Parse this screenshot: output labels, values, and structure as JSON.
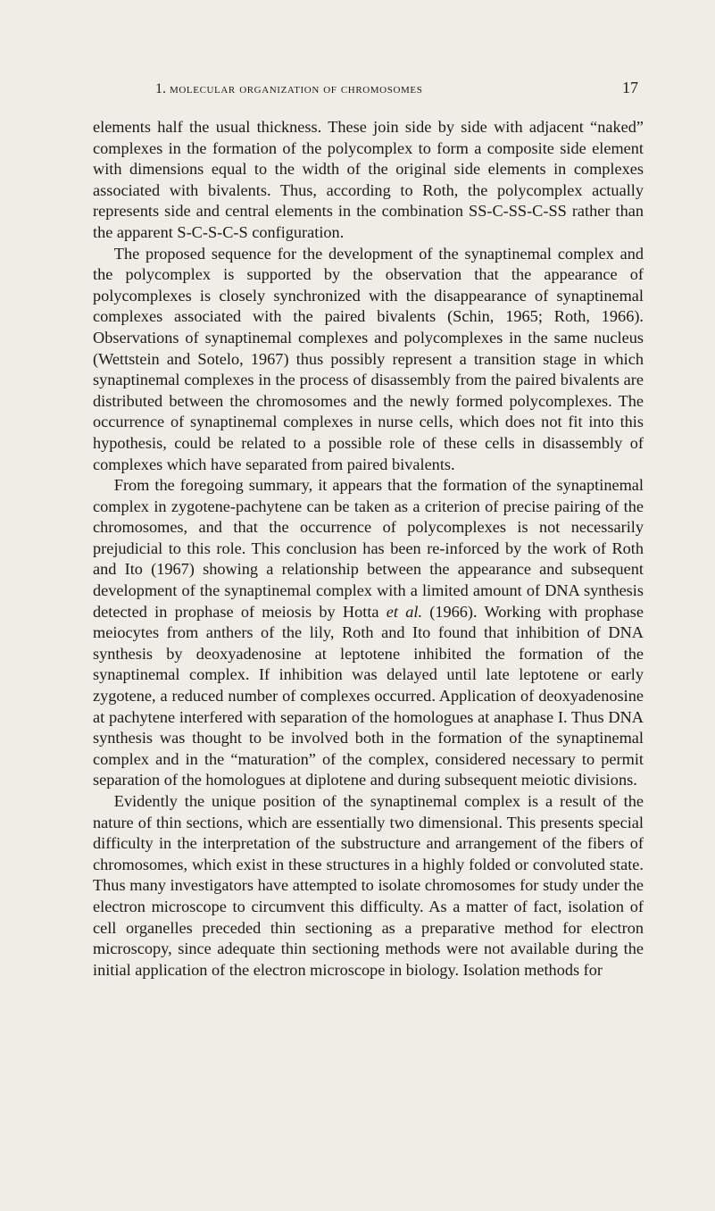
{
  "header": {
    "section_number": "1.",
    "section_title": "molecular organization of chromosomes",
    "page_number": "17"
  },
  "paragraphs": [
    {
      "indent": false,
      "text": "elements half the usual thickness. These join side by side with adjacent “naked” complexes in the formation of the polycomplex to form a com­posite side element with dimensions equal to the width of the original side elements in complexes associated with bivalents. Thus, according to Roth, the polycomplex actually represents side and central elements in the combination SS-C-SS-C-SS rather than the apparent S-C-S-C-S configuration."
    },
    {
      "indent": true,
      "text": "The proposed sequence for the development of the synaptinemal complex and the polycomplex is supported by the observation that the appearance of polycomplexes is closely synchronized with the disappearance of synaptinemal complexes associated with the paired bivalents (Schin, 1965; Roth, 1966). Observations of synaptinemal complexes and polycomplexes in the same nucleus (Wettstein and Sotelo, 1967) thus possibly represent a transition stage in which synaptinemal complexes in the process of dis­assembly from the paired bivalents are distributed between the chromosomes and the newly formed polycomplexes. The occurrence of synaptinemal complexes in nurse cells, which does not fit into this hypothesis, could be related to a possible role of these cells in disassembly of complexes which have separated from paired bivalents."
    },
    {
      "indent": true,
      "text_pre": "From the foregoing summary, it appears that the formation of the synaptinemal complex in zygotene-pachytene can be taken as a criterion of precise pairing of the chromosomes, and that the occurrence of poly­complexes is not necessarily prejudicial to this role. This conclusion has been re-inforced by the work of Roth and Ito (1967) showing a relationship between the appearance and subsequent development of the synaptinemal complex with a limited amount of DNA synthesis detected in prophase of meiosis by Hotta ",
      "ital": "et al.",
      "text_post": " (1966). Working with prophase meiocytes from anthers of the lily, Roth and Ito found that inhibition of DNA synthesis by deoxyadenosine at leptotene inhibited the formation of the synaptinemal complex. If inhibition was delayed until late leptotene or early zygotene, a reduced number of complexes occurred. Application of deoxyadenosine at pachytene interfered with separation of the homologues at anaphase I. Thus DNA synthesis was thought to be involved both in the formation of the synaptinemal complex and in the “maturation” of the complex, con­sidered necessary to permit separation of the homologues at diplotene and during subsequent meiotic divisions."
    },
    {
      "indent": true,
      "text": "Evidently the unique position of the synaptinemal complex is a result of the nature of thin sections, which are essentially two dimensional. This presents special difficulty in the interpretation of the substructure and arrangement of the fibers of chromosomes, which exist in these structures in a highly folded or convoluted state. Thus many investigators have attempted to isolate chromosomes for study under the electron microscope to circumvent this difficulty. As a matter of fact, isolation of cell organelles preceded thin sectioning as a preparative method for electron microscopy, since adequate thin sectioning methods were not available during the initial application of the electron microscope in biology. Isolation methods for"
    }
  ],
  "colors": {
    "background": "#f0ede6",
    "text": "#1a1a1a"
  },
  "typography": {
    "body_fontsize": 18.3,
    "header_fontsize": 15,
    "line_height": 1.29,
    "font_family": "Times New Roman"
  }
}
